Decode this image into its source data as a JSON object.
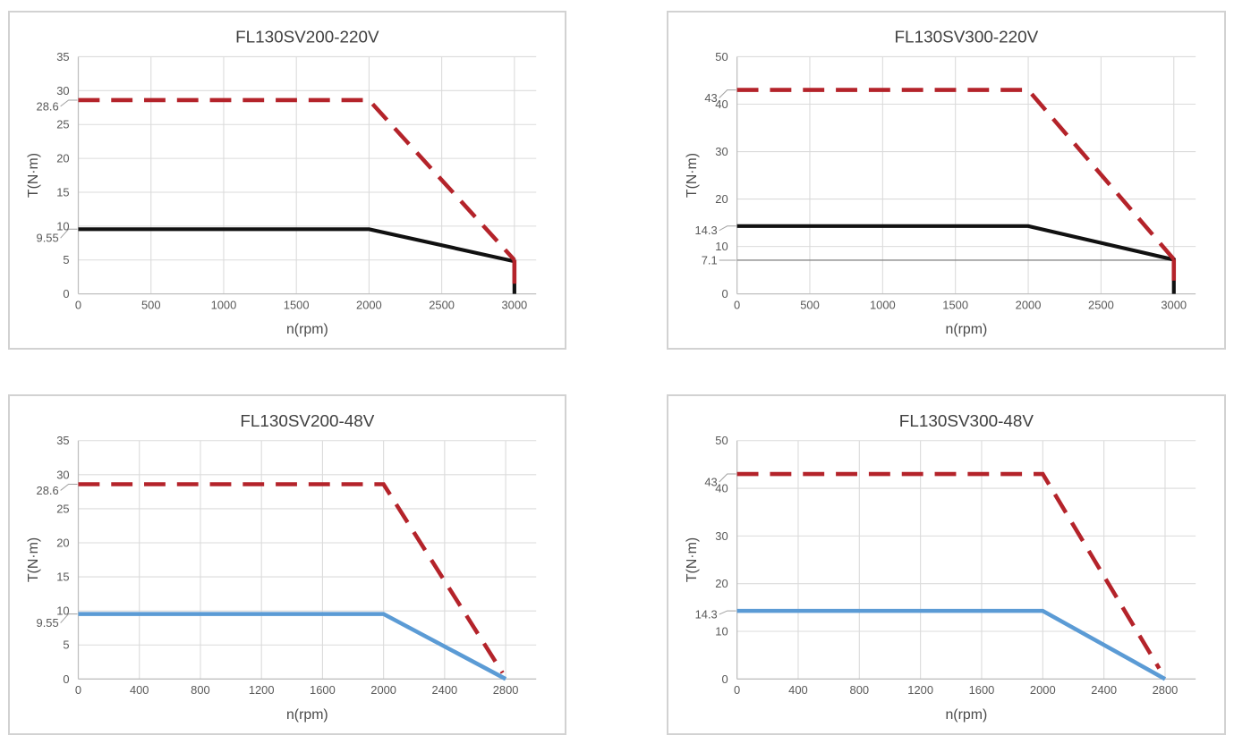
{
  "colors": {
    "grid": "#dbdbdb",
    "axis": "#c0c0c0",
    "tick_text": "#595959",
    "axis_title_text": "#4a4a4a",
    "title_text": "#404040",
    "leader": "#a0a0a0",
    "peak_red": "#b4232a",
    "rated_black": "#111111",
    "rated_blue": "#5b9bd5",
    "aux_gray": "#8a8a8a",
    "card_border": "#d2d2d2"
  },
  "chart_data": [
    {
      "type": "line",
      "title": "FL130SV200-220V",
      "xlabel": "n(rpm)",
      "ylabel": "T(N·m)",
      "xlim": [
        0,
        3150
      ],
      "ylim": [
        0,
        35
      ],
      "xticks": [
        0,
        500,
        1000,
        1500,
        2000,
        2500,
        3000
      ],
      "yticks": [
        0,
        5,
        10,
        15,
        20,
        25,
        30,
        35
      ],
      "grid": true,
      "legend": "none",
      "series": [
        {
          "name": "rated-torque",
          "color": "#111111",
          "width": 4.2,
          "dash": false,
          "points": [
            [
              0,
              9.55
            ],
            [
              2000,
              9.55
            ],
            [
              3000,
              4.8
            ],
            [
              3000,
              0
            ]
          ]
        },
        {
          "name": "peak-torque",
          "color": "#b4232a",
          "width": 4.6,
          "dash": true,
          "points": [
            [
              0,
              28.6
            ],
            [
              2000,
              28.6
            ],
            [
              3000,
              5
            ]
          ]
        },
        {
          "name": "peak-torque-drop",
          "color": "#b4232a",
          "width": 4.6,
          "dash": false,
          "points": [
            [
              3000,
              5
            ],
            [
              3000,
              1.5
            ]
          ]
        }
      ],
      "annotations": [
        {
          "label": "28.6",
          "value": 28.6,
          "dy": 7
        },
        {
          "label": "9.55",
          "value": 9.55,
          "dy": 10
        }
      ]
    },
    {
      "type": "line",
      "title": "FL130SV300-220V",
      "xlabel": "n(rpm)",
      "ylabel": "T(N·m)",
      "xlim": [
        0,
        3150
      ],
      "ylim": [
        0,
        50
      ],
      "xticks": [
        0,
        500,
        1000,
        1500,
        2000,
        2500,
        3000
      ],
      "yticks": [
        0,
        10,
        20,
        30,
        40,
        50
      ],
      "grid": true,
      "legend": "none",
      "series": [
        {
          "name": "continuous-limit",
          "color": "#8a8a8a",
          "width": 1.3,
          "dash": false,
          "points": [
            [
              0,
              7.1
            ],
            [
              3000,
              7.1
            ]
          ]
        },
        {
          "name": "rated-torque",
          "color": "#111111",
          "width": 4.2,
          "dash": false,
          "points": [
            [
              0,
              14.3
            ],
            [
              2000,
              14.3
            ],
            [
              3000,
              7.2
            ],
            [
              3000,
              0
            ]
          ]
        },
        {
          "name": "peak-torque",
          "color": "#b4232a",
          "width": 4.6,
          "dash": true,
          "points": [
            [
              0,
              43
            ],
            [
              2000,
              43
            ],
            [
              3000,
              7.3
            ]
          ]
        },
        {
          "name": "peak-torque-drop",
          "color": "#b4232a",
          "width": 4.6,
          "dash": false,
          "points": [
            [
              3000,
              7.3
            ],
            [
              3000,
              2.8
            ]
          ]
        }
      ],
      "annotations": [
        {
          "label": "43",
          "value": 43,
          "dy": 9
        },
        {
          "label": "14.3",
          "value": 14.3,
          "dy": 5
        },
        {
          "label": "7.1",
          "value": 7.1,
          "dy": 0
        }
      ]
    },
    {
      "type": "line",
      "title": "FL130SV200-48V",
      "xlabel": "n(rpm)",
      "ylabel": "T(N·m)",
      "xlim": [
        0,
        3000
      ],
      "ylim": [
        0,
        35
      ],
      "xticks": [
        0,
        400,
        800,
        1200,
        1600,
        2000,
        2400,
        2800
      ],
      "yticks": [
        0,
        5,
        10,
        15,
        20,
        25,
        30,
        35
      ],
      "grid": true,
      "legend": "none",
      "series": [
        {
          "name": "rated-torque",
          "color": "#5b9bd5",
          "width": 4.6,
          "dash": false,
          "points": [
            [
              0,
              9.55
            ],
            [
              2000,
              9.55
            ],
            [
              2800,
              0
            ]
          ]
        },
        {
          "name": "peak-torque",
          "color": "#b4232a",
          "width": 4.6,
          "dash": true,
          "points": [
            [
              0,
              28.6
            ],
            [
              2000,
              28.6
            ],
            [
              2780,
              0.9
            ]
          ]
        }
      ],
      "annotations": [
        {
          "label": "28.6",
          "value": 28.6,
          "dy": 7
        },
        {
          "label": "9.55",
          "value": 9.55,
          "dy": 10
        }
      ]
    },
    {
      "type": "line",
      "title": "FL130SV300-48V",
      "xlabel": "n(rpm)",
      "ylabel": "T(N·m)",
      "xlim": [
        0,
        3000
      ],
      "ylim": [
        0,
        50
      ],
      "xticks": [
        0,
        400,
        800,
        1200,
        1600,
        2000,
        2400,
        2800
      ],
      "yticks": [
        0,
        10,
        20,
        30,
        40,
        50
      ],
      "grid": true,
      "legend": "none",
      "series": [
        {
          "name": "rated-torque",
          "color": "#5b9bd5",
          "width": 4.6,
          "dash": false,
          "points": [
            [
              0,
              14.3
            ],
            [
              2000,
              14.3
            ],
            [
              2800,
              0
            ]
          ]
        },
        {
          "name": "peak-torque",
          "color": "#b4232a",
          "width": 4.6,
          "dash": true,
          "points": [
            [
              0,
              43
            ],
            [
              2000,
              43
            ],
            [
              2762,
              2.2
            ]
          ]
        }
      ],
      "annotations": [
        {
          "label": "43",
          "value": 43,
          "dy": 9
        },
        {
          "label": "14.3",
          "value": 14.3,
          "dy": 4
        }
      ]
    }
  ]
}
